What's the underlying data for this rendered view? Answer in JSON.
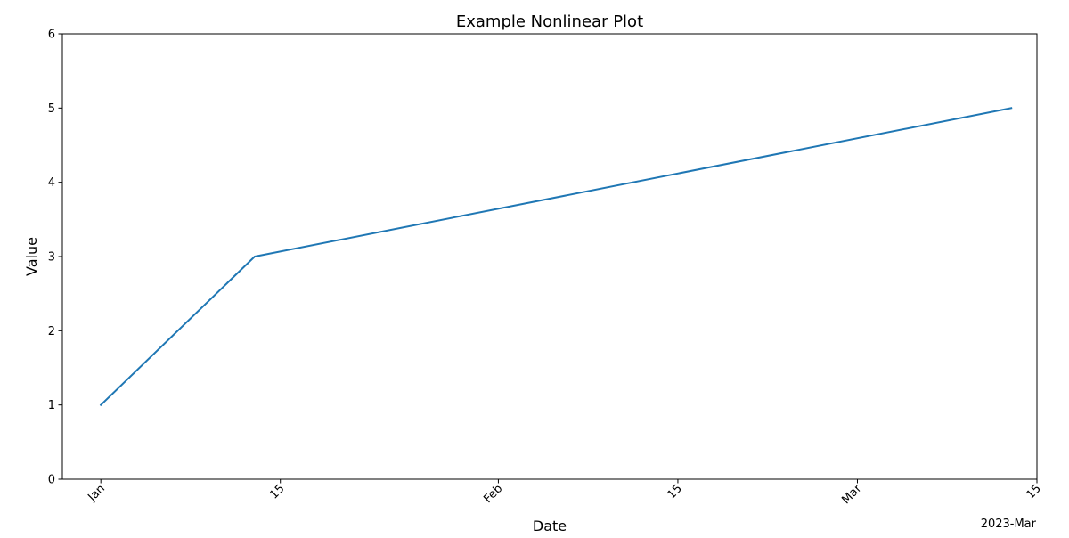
{
  "chart_data": {
    "type": "line",
    "title": "Example Nonlinear Plot",
    "xlabel": "Date",
    "ylabel": "Value",
    "x_axis_type": "date",
    "xlim": [
      "2022-12-29",
      "2023-03-15"
    ],
    "ylim": [
      0,
      6
    ],
    "x_ticks": [
      {
        "date": "2023-01-01",
        "label": "Jan"
      },
      {
        "date": "2023-01-15",
        "label": "15"
      },
      {
        "date": "2023-02-01",
        "label": "Feb"
      },
      {
        "date": "2023-02-15",
        "label": "15"
      },
      {
        "date": "2023-03-01",
        "label": "Mar"
      },
      {
        "date": "2023-03-15",
        "label": "15"
      }
    ],
    "x_offset_label": "2023-Mar",
    "y_ticks": [
      0,
      1,
      2,
      3,
      4,
      5,
      6
    ],
    "grid": false,
    "legend": "none",
    "series": [
      {
        "color": "#1f77b4",
        "points": [
          {
            "x": "2023-01-01",
            "y": 1
          },
          {
            "x": "2023-01-13",
            "y": 3
          },
          {
            "x": "2023-03-13",
            "y": 5
          }
        ]
      }
    ]
  }
}
